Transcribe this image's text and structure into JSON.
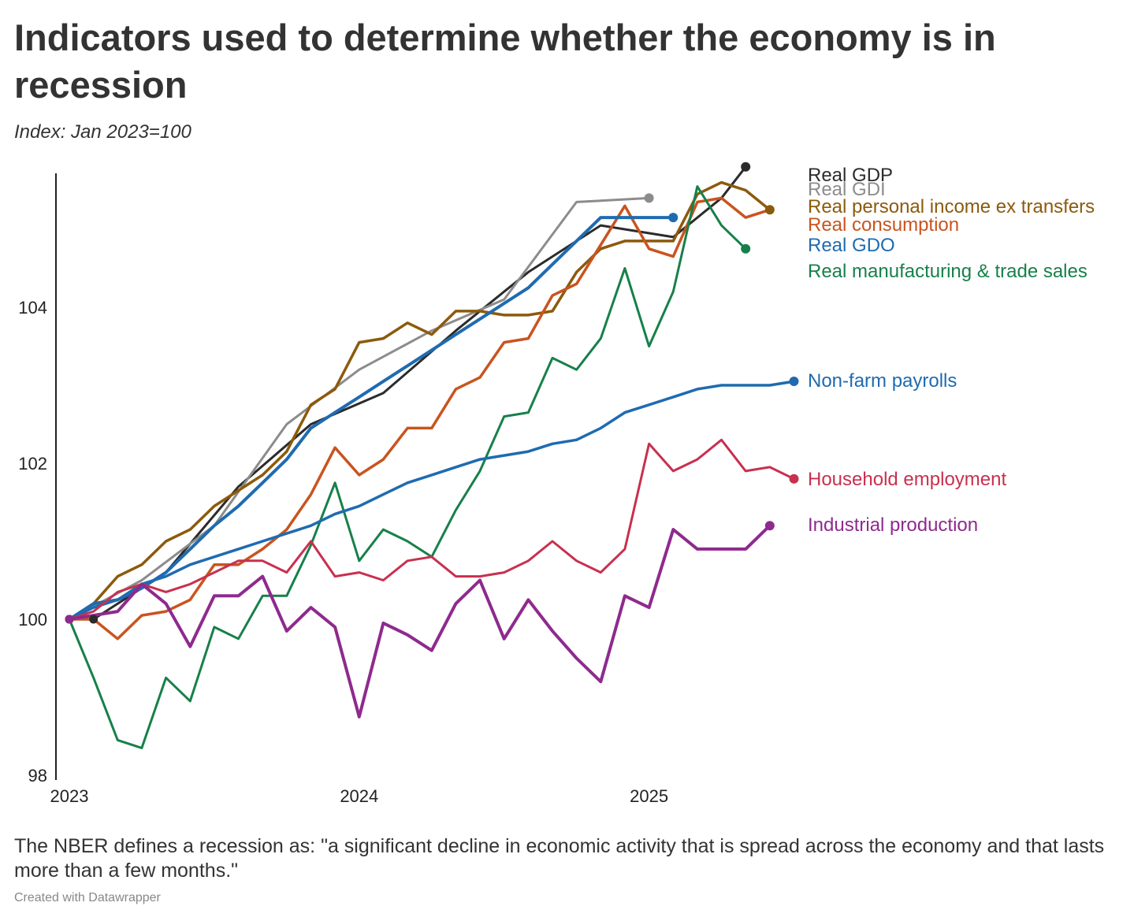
{
  "header": {
    "title": "Indicators used to determine whether the economy is in recession",
    "subtitle": "Index: Jan 2023=100"
  },
  "footer": {
    "note": "The NBER defines a recession as: \"a significant decline in economic activity that is spread across the economy and that lasts more than a few months.\"",
    "credit": "Created with Datawrapper"
  },
  "chart_data": {
    "type": "line",
    "title": "Indicators used to determine whether the economy is in recession",
    "subtitle": "Index: Jan 2023=100",
    "xlabel": "",
    "ylabel": "",
    "xlim": [
      "2023-01",
      "2025-07"
    ],
    "ylim": [
      98,
      106.2
    ],
    "y_ticks": [
      98,
      100,
      102,
      104
    ],
    "x_ticks": [
      {
        "label": "2023",
        "date": "2023-01"
      },
      {
        "label": "2024",
        "date": "2024-01"
      },
      {
        "label": "2025",
        "date": "2025-01"
      }
    ],
    "grid": false,
    "legend": "direct labels at line ends (right)",
    "series": [
      {
        "name": "Real GDP",
        "color": "#2b2b2b",
        "end_dot": true,
        "stroke": 3,
        "points": [
          [
            "2023-02",
            100.0
          ],
          [
            "2023-05",
            100.6
          ],
          [
            "2023-08",
            101.7
          ],
          [
            "2023-11",
            102.5
          ],
          [
            "2024-02",
            102.9
          ],
          [
            "2024-05",
            103.7
          ],
          [
            "2024-08",
            104.45
          ],
          [
            "2024-11",
            105.05
          ],
          [
            "2025-02",
            104.9
          ],
          [
            "2025-04",
            105.4
          ],
          [
            "2025-05",
            105.8
          ]
        ]
      },
      {
        "name": "Real GDI",
        "color": "#8c8c8c",
        "end_dot": true,
        "stroke": 3,
        "points": [
          [
            "2023-01",
            100.0
          ],
          [
            "2023-04",
            100.5
          ],
          [
            "2023-07",
            101.2
          ],
          [
            "2023-10",
            102.5
          ],
          [
            "2024-01",
            103.2
          ],
          [
            "2024-04",
            103.7
          ],
          [
            "2024-07",
            104.1
          ],
          [
            "2024-10",
            105.35
          ],
          [
            "2025-01",
            105.4
          ]
        ]
      },
      {
        "name": "Real personal income ex transfers",
        "color": "#8c5a0d",
        "end_dot": true,
        "stroke": 3.5,
        "points": [
          [
            "2023-01",
            100.0
          ],
          [
            "2023-02",
            100.2
          ],
          [
            "2023-03",
            100.55
          ],
          [
            "2023-04",
            100.7
          ],
          [
            "2023-05",
            101.0
          ],
          [
            "2023-06",
            101.15
          ],
          [
            "2023-07",
            101.45
          ],
          [
            "2023-08",
            101.65
          ],
          [
            "2023-09",
            101.85
          ],
          [
            "2023-10",
            102.15
          ],
          [
            "2023-11",
            102.75
          ],
          [
            "2023-12",
            102.95
          ],
          [
            "2024-01",
            103.55
          ],
          [
            "2024-02",
            103.6
          ],
          [
            "2024-03",
            103.8
          ],
          [
            "2024-04",
            103.65
          ],
          [
            "2024-05",
            103.95
          ],
          [
            "2024-06",
            103.95
          ],
          [
            "2024-07",
            103.9
          ],
          [
            "2024-08",
            103.9
          ],
          [
            "2024-09",
            103.95
          ],
          [
            "2024-10",
            104.45
          ],
          [
            "2024-11",
            104.75
          ],
          [
            "2024-12",
            104.85
          ],
          [
            "2025-01",
            104.85
          ],
          [
            "2025-02",
            104.85
          ],
          [
            "2025-03",
            105.45
          ],
          [
            "2025-04",
            105.6
          ],
          [
            "2025-05",
            105.5
          ],
          [
            "2025-06",
            105.25
          ]
        ]
      },
      {
        "name": "Real consumption",
        "color": "#c9541f",
        "end_dot": false,
        "stroke": 3.5,
        "points": [
          [
            "2023-01",
            100.0
          ],
          [
            "2023-02",
            100.0
          ],
          [
            "2023-03",
            99.75
          ],
          [
            "2023-04",
            100.05
          ],
          [
            "2023-05",
            100.1
          ],
          [
            "2023-06",
            100.25
          ],
          [
            "2023-07",
            100.7
          ],
          [
            "2023-08",
            100.7
          ],
          [
            "2023-09",
            100.9
          ],
          [
            "2023-10",
            101.15
          ],
          [
            "2023-11",
            101.6
          ],
          [
            "2023-12",
            102.2
          ],
          [
            "2024-01",
            101.85
          ],
          [
            "2024-02",
            102.05
          ],
          [
            "2024-03",
            102.45
          ],
          [
            "2024-04",
            102.45
          ],
          [
            "2024-05",
            102.95
          ],
          [
            "2024-06",
            103.1
          ],
          [
            "2024-07",
            103.55
          ],
          [
            "2024-08",
            103.6
          ],
          [
            "2024-09",
            104.15
          ],
          [
            "2024-10",
            104.3
          ],
          [
            "2024-11",
            104.8
          ],
          [
            "2024-12",
            105.3
          ],
          [
            "2025-01",
            104.75
          ],
          [
            "2025-02",
            104.65
          ],
          [
            "2025-03",
            105.35
          ],
          [
            "2025-04",
            105.4
          ],
          [
            "2025-05",
            105.15
          ],
          [
            "2025-06",
            105.25
          ]
        ]
      },
      {
        "name": "Real GDO",
        "color": "#1f6bb0",
        "end_dot": true,
        "stroke": 4,
        "points": [
          [
            "2023-01",
            100.0
          ],
          [
            "2023-02",
            100.2
          ],
          [
            "2023-03",
            100.25
          ],
          [
            "2023-04",
            100.4
          ],
          [
            "2023-05",
            100.6
          ],
          [
            "2023-06",
            100.9
          ],
          [
            "2023-07",
            101.2
          ],
          [
            "2023-08",
            101.45
          ],
          [
            "2023-09",
            101.75
          ],
          [
            "2023-10",
            102.05
          ],
          [
            "2023-11",
            102.45
          ],
          [
            "2023-12",
            102.65
          ],
          [
            "2024-01",
            102.85
          ],
          [
            "2024-02",
            103.05
          ],
          [
            "2024-03",
            103.25
          ],
          [
            "2024-04",
            103.45
          ],
          [
            "2024-05",
            103.65
          ],
          [
            "2024-06",
            103.85
          ],
          [
            "2024-07",
            104.05
          ],
          [
            "2024-08",
            104.25
          ],
          [
            "2024-09",
            104.55
          ],
          [
            "2024-10",
            104.85
          ],
          [
            "2024-11",
            105.15
          ],
          [
            "2024-12",
            105.15
          ],
          [
            "2025-01",
            105.15
          ],
          [
            "2025-02",
            105.15
          ]
        ]
      },
      {
        "name": "Real manufacturing & trade sales",
        "color": "#17804a",
        "end_dot": true,
        "stroke": 3,
        "points": [
          [
            "2023-01",
            100.0
          ],
          [
            "2023-02",
            99.25
          ],
          [
            "2023-03",
            98.45
          ],
          [
            "2023-04",
            98.35
          ],
          [
            "2023-05",
            99.25
          ],
          [
            "2023-06",
            98.95
          ],
          [
            "2023-07",
            99.9
          ],
          [
            "2023-08",
            99.75
          ],
          [
            "2023-09",
            100.3
          ],
          [
            "2023-10",
            100.3
          ],
          [
            "2023-11",
            100.95
          ],
          [
            "2023-12",
            101.75
          ],
          [
            "2024-01",
            100.75
          ],
          [
            "2024-02",
            101.15
          ],
          [
            "2024-03",
            101.0
          ],
          [
            "2024-04",
            100.8
          ],
          [
            "2024-05",
            101.4
          ],
          [
            "2024-06",
            101.9
          ],
          [
            "2024-07",
            102.6
          ],
          [
            "2024-08",
            102.65
          ],
          [
            "2024-09",
            103.35
          ],
          [
            "2024-10",
            103.2
          ],
          [
            "2024-11",
            103.6
          ],
          [
            "2024-12",
            104.5
          ],
          [
            "2025-01",
            103.5
          ],
          [
            "2025-02",
            104.2
          ],
          [
            "2025-03",
            105.55
          ],
          [
            "2025-04",
            105.05
          ],
          [
            "2025-05",
            104.75
          ]
        ]
      },
      {
        "name": "Non-farm payrolls",
        "color": "#1f6bb0",
        "end_dot": true,
        "stroke": 3.5,
        "points": [
          [
            "2023-01",
            100.0
          ],
          [
            "2023-02",
            100.15
          ],
          [
            "2023-03",
            100.25
          ],
          [
            "2023-04",
            100.45
          ],
          [
            "2023-05",
            100.55
          ],
          [
            "2023-06",
            100.7
          ],
          [
            "2023-07",
            100.8
          ],
          [
            "2023-08",
            100.9
          ],
          [
            "2023-09",
            101.0
          ],
          [
            "2023-10",
            101.1
          ],
          [
            "2023-11",
            101.2
          ],
          [
            "2023-12",
            101.35
          ],
          [
            "2024-01",
            101.45
          ],
          [
            "2024-02",
            101.6
          ],
          [
            "2024-03",
            101.75
          ],
          [
            "2024-04",
            101.85
          ],
          [
            "2024-05",
            101.95
          ],
          [
            "2024-06",
            102.05
          ],
          [
            "2024-07",
            102.1
          ],
          [
            "2024-08",
            102.15
          ],
          [
            "2024-09",
            102.25
          ],
          [
            "2024-10",
            102.3
          ],
          [
            "2024-11",
            102.45
          ],
          [
            "2024-12",
            102.65
          ],
          [
            "2025-01",
            102.75
          ],
          [
            "2025-02",
            102.85
          ],
          [
            "2025-03",
            102.95
          ],
          [
            "2025-04",
            103.0
          ],
          [
            "2025-05",
            103.0
          ],
          [
            "2025-06",
            103.0
          ],
          [
            "2025-07",
            103.05
          ]
        ]
      },
      {
        "name": "Household employment",
        "color": "#c8304f",
        "end_dot": true,
        "stroke": 3,
        "points": [
          [
            "2023-01",
            100.0
          ],
          [
            "2023-02",
            100.1
          ],
          [
            "2023-03",
            100.35
          ],
          [
            "2023-04",
            100.45
          ],
          [
            "2023-05",
            100.35
          ],
          [
            "2023-06",
            100.45
          ],
          [
            "2023-07",
            100.6
          ],
          [
            "2023-08",
            100.75
          ],
          [
            "2023-09",
            100.75
          ],
          [
            "2023-10",
            100.6
          ],
          [
            "2023-11",
            101.0
          ],
          [
            "2023-12",
            100.55
          ],
          [
            "2024-01",
            100.6
          ],
          [
            "2024-02",
            100.5
          ],
          [
            "2024-03",
            100.75
          ],
          [
            "2024-04",
            100.8
          ],
          [
            "2024-05",
            100.55
          ],
          [
            "2024-06",
            100.55
          ],
          [
            "2024-07",
            100.6
          ],
          [
            "2024-08",
            100.75
          ],
          [
            "2024-09",
            101.0
          ],
          [
            "2024-10",
            100.75
          ],
          [
            "2024-11",
            100.6
          ],
          [
            "2024-12",
            100.9
          ],
          [
            "2025-01",
            102.25
          ],
          [
            "2025-02",
            101.9
          ],
          [
            "2025-03",
            102.05
          ],
          [
            "2025-04",
            102.3
          ],
          [
            "2025-05",
            101.9
          ],
          [
            "2025-06",
            101.95
          ],
          [
            "2025-07",
            101.8
          ]
        ]
      },
      {
        "name": "Industrial production",
        "color": "#8e2a8e",
        "end_dot": true,
        "stroke": 4,
        "points": [
          [
            "2023-01",
            100.0
          ],
          [
            "2023-02",
            100.05
          ],
          [
            "2023-03",
            100.1
          ],
          [
            "2023-04",
            100.45
          ],
          [
            "2023-05",
            100.2
          ],
          [
            "2023-06",
            99.65
          ],
          [
            "2023-07",
            100.3
          ],
          [
            "2023-08",
            100.3
          ],
          [
            "2023-09",
            100.55
          ],
          [
            "2023-10",
            99.85
          ],
          [
            "2023-11",
            100.15
          ],
          [
            "2023-12",
            99.9
          ],
          [
            "2024-01",
            98.75
          ],
          [
            "2024-02",
            99.95
          ],
          [
            "2024-03",
            99.8
          ],
          [
            "2024-04",
            99.6
          ],
          [
            "2024-05",
            100.2
          ],
          [
            "2024-06",
            100.5
          ],
          [
            "2024-07",
            99.75
          ],
          [
            "2024-08",
            100.25
          ],
          [
            "2024-09",
            99.85
          ],
          [
            "2024-10",
            99.5
          ],
          [
            "2024-11",
            99.2
          ],
          [
            "2024-12",
            100.3
          ],
          [
            "2025-01",
            100.15
          ],
          [
            "2025-02",
            101.15
          ],
          [
            "2025-03",
            100.9
          ],
          [
            "2025-04",
            100.9
          ],
          [
            "2025-05",
            100.9
          ],
          [
            "2025-06",
            101.2
          ]
        ]
      }
    ]
  }
}
